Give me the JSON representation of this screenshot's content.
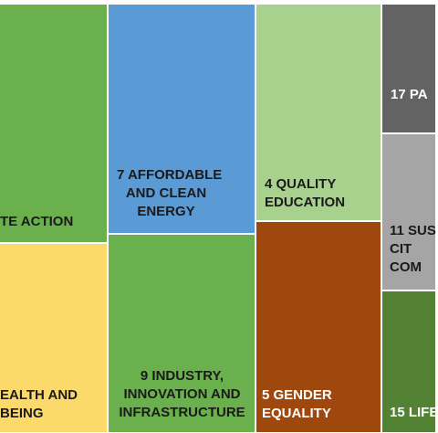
{
  "chart_data": {
    "type": "treemap",
    "tiles": [
      {
        "id": "climate",
        "label": "TE ACTION",
        "color": "#6ab04c"
      },
      {
        "id": "health",
        "label": "EALTH AND\nBEING",
        "color": "#fcd96b"
      },
      {
        "id": "energy",
        "label": "7 AFFORDABLE\nAND CLEAN\nENERGY",
        "color": "#5b9bd5"
      },
      {
        "id": "industry",
        "label": "9 INDUSTRY,\nINNOVATION AND\nINFRASTRUCTURE",
        "color": "#6ab04c"
      },
      {
        "id": "education",
        "label": "4 QUALITY\nEDUCATION",
        "color": "#a9d18e"
      },
      {
        "id": "gender",
        "label": "5 GENDER\nEQUALITY",
        "color": "#9e480e"
      },
      {
        "id": "partnerships",
        "label": "17 PA",
        "color": "#636363"
      },
      {
        "id": "cities",
        "label": "11 SUS\nCIT\nCOM",
        "color": "#a5a5a5"
      },
      {
        "id": "life",
        "label": "15 LIFE",
        "color": "#548235"
      }
    ]
  }
}
